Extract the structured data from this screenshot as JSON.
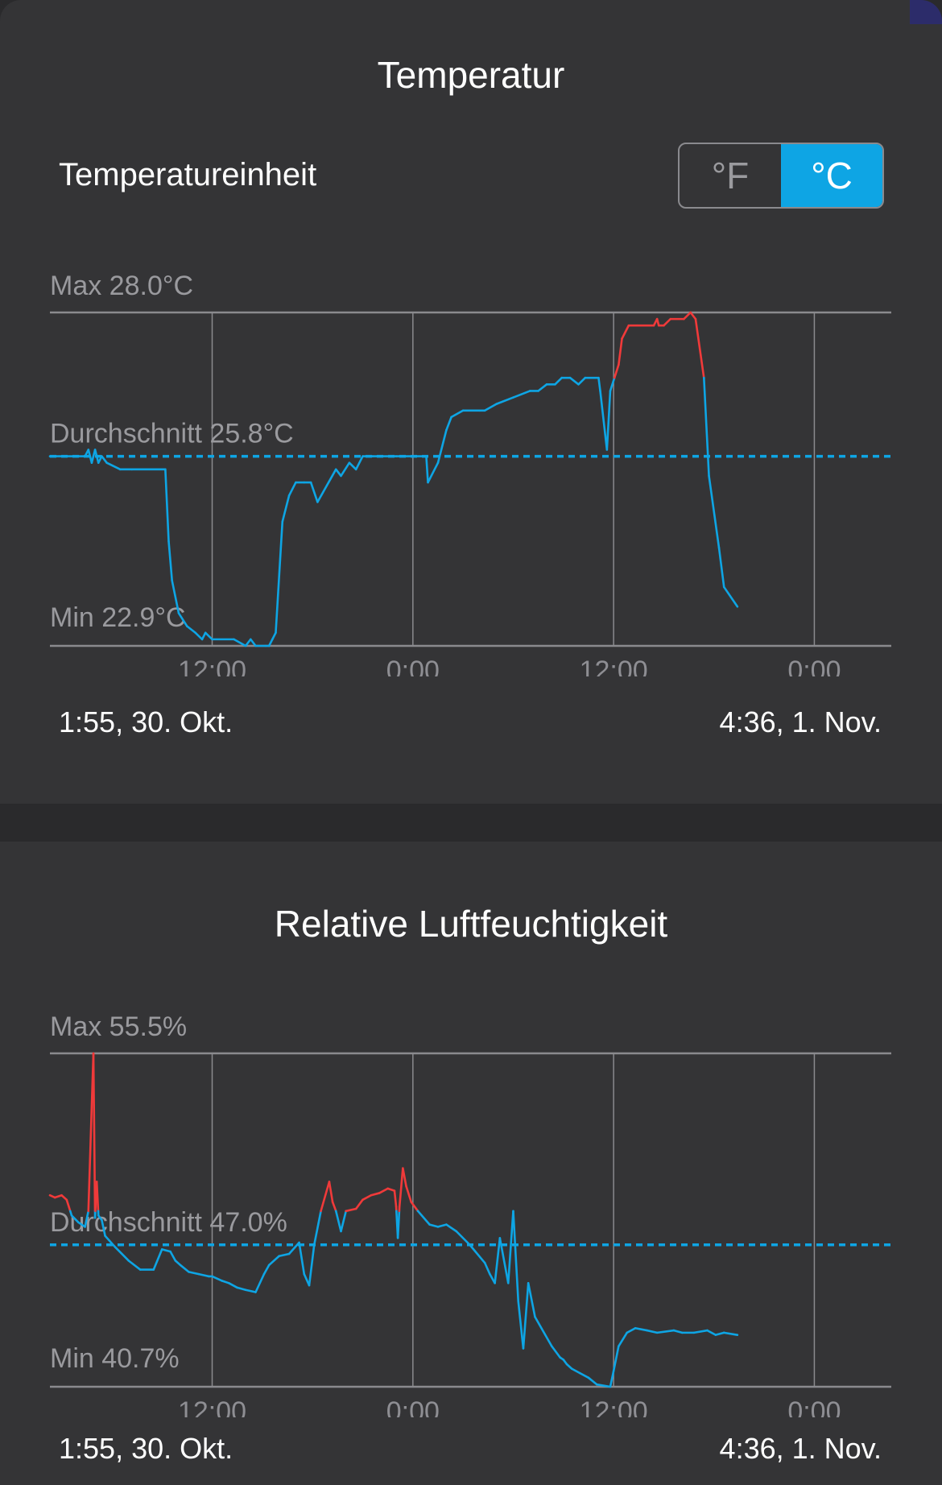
{
  "temperature": {
    "title": "Temperatur",
    "unit_label": "Temperatureinheit",
    "unit_options": [
      "°F",
      "°C"
    ],
    "selected_unit": "°C",
    "start_label": "1:55,  30. Okt.",
    "end_label": "4:36,  1. Nov."
  },
  "humidity": {
    "title": "Relative Luftfeuchtigkeit",
    "start_label": "1:55,  30. Okt.",
    "end_label": "4:36,  1. Nov."
  },
  "colors": {
    "normal": "#0ea5e4",
    "alert": "#f03a3a",
    "grid": "#8a8a8e",
    "avg": "#0ea5e4"
  },
  "chart_data": [
    {
      "type": "line",
      "title": "Temperatur",
      "unit": "°C",
      "x_ticks": [
        "12:00",
        "0:00",
        "12:00",
        "0:00"
      ],
      "x_tick_hours": [
        12,
        24,
        36,
        48
      ],
      "x_range_hours": [
        2.3,
        52.6
      ],
      "ylim": [
        22.9,
        28.0
      ],
      "max_label": "Max 28.0°C",
      "min_label": "Min 22.9°C",
      "avg_label": "Durchschnitt 25.8°C",
      "avg_value": 25.8,
      "threshold": 27.0,
      "series": [
        {
          "x": [
            2.3,
            4.4,
            4.6,
            4.8,
            5.0,
            5.2,
            5.4,
            5.7,
            6.5,
            7.2,
            9.2,
            9.4,
            9.6,
            10.0,
            10.5,
            11.0,
            11.4,
            11.6,
            12.0,
            13.3,
            14.0,
            14.3,
            14.6,
            15.2,
            15.4,
            15.6,
            15.8,
            16.2,
            16.6,
            17.0,
            17.5,
            17.9,
            18.3,
            19.4,
            19.7,
            20.2,
            20.6,
            21.0,
            21.6,
            23.0,
            24.8,
            24.9,
            25.5,
            26.0,
            26.3,
            27.0,
            28.0,
            28.3,
            29.0,
            30.0,
            31.0,
            31.5,
            32.0,
            32.5,
            32.9,
            33.4,
            33.9,
            34.3,
            35.1,
            35.2,
            35.6,
            35.8,
            36.3,
            36.5,
            36.9,
            37.4,
            38.4,
            38.6,
            38.7,
            38.8,
            39.0,
            39.4,
            40.2,
            40.6,
            40.9,
            41.4,
            41.7,
            42.3,
            42.6,
            43.4
          ],
          "y": [
            25.8,
            25.8,
            25.9,
            25.7,
            25.9,
            25.7,
            25.8,
            25.7,
            25.6,
            25.6,
            25.6,
            24.5,
            23.9,
            23.4,
            23.2,
            23.1,
            23.0,
            23.1,
            23.0,
            23.0,
            22.9,
            23.0,
            22.9,
            22.9,
            22.9,
            23.0,
            23.1,
            24.8,
            25.2,
            25.4,
            25.4,
            25.4,
            25.1,
            25.6,
            25.5,
            25.7,
            25.6,
            25.8,
            25.8,
            25.8,
            25.8,
            25.4,
            25.7,
            26.2,
            26.4,
            26.5,
            26.5,
            26.5,
            26.6,
            26.7,
            26.8,
            26.8,
            26.9,
            26.9,
            27.0,
            27.0,
            26.9,
            27.0,
            27.0,
            26.8,
            25.9,
            26.8,
            27.2,
            27.6,
            27.8,
            27.8,
            27.8,
            27.9,
            27.8,
            27.8,
            27.8,
            27.9,
            27.9,
            28.0,
            27.9,
            27.0,
            25.5,
            24.4,
            23.8,
            23.5
          ]
        }
      ]
    },
    {
      "type": "line",
      "title": "Relative Luftfeuchtigkeit",
      "unit": "%",
      "x_ticks": [
        "12:00",
        "0:00",
        "12:00",
        "0:00"
      ],
      "x_tick_hours": [
        12,
        24,
        36,
        48
      ],
      "x_range_hours": [
        2.3,
        52.6
      ],
      "ylim": [
        40.7,
        55.5
      ],
      "max_label": "Max 55.5%",
      "min_label": "Min 40.7%",
      "avg_label": "Durchschnitt 47.0%",
      "avg_value": 47.0,
      "threshold": 48.5,
      "series": [
        {
          "x": [
            2.3,
            2.6,
            3.0,
            3.3,
            3.6,
            4.0,
            4.4,
            4.6,
            4.9,
            5.0,
            5.1,
            5.2,
            5.4,
            5.6,
            6.2,
            7.0,
            7.7,
            8.5,
            9.0,
            9.5,
            9.8,
            10.1,
            10.6,
            11.2,
            11.8,
            12.0,
            12.6,
            13.0,
            13.5,
            14.0,
            14.6,
            15.1,
            15.4,
            16.0,
            16.6,
            17.2,
            17.5,
            17.8,
            18.1,
            18.5,
            19.0,
            19.2,
            19.4,
            19.7,
            20.0,
            20.6,
            21.0,
            21.5,
            22.0,
            22.5,
            22.9,
            23.0,
            23.1,
            23.2,
            23.4,
            23.6,
            23.9,
            24.3,
            25.0,
            25.5,
            26.0,
            26.6,
            27.4,
            28.3,
            28.6,
            28.9,
            29.2,
            29.7,
            30.0,
            30.3,
            30.6,
            30.9,
            31.3,
            32.3,
            32.8,
            33.0,
            33.2,
            33.5,
            34.0,
            34.5,
            35.0,
            35.8,
            36.0,
            36.3,
            36.8,
            37.3,
            38.0,
            38.6,
            39.6,
            40.1,
            40.8,
            41.6,
            42.1,
            42.6,
            43.4
          ],
          "y": [
            49.2,
            49.1,
            49.2,
            49.0,
            48.3,
            48.0,
            47.8,
            48.5,
            55.5,
            48.2,
            49.8,
            48.3,
            48.1,
            47.4,
            46.9,
            46.3,
            45.9,
            45.9,
            46.8,
            46.7,
            46.3,
            46.1,
            45.8,
            45.7,
            45.6,
            45.6,
            45.4,
            45.3,
            45.1,
            45.0,
            44.9,
            45.7,
            46.1,
            46.5,
            46.6,
            47.1,
            45.7,
            45.2,
            47.0,
            48.5,
            49.8,
            48.9,
            48.5,
            47.6,
            48.5,
            48.6,
            49.0,
            49.2,
            49.3,
            49.5,
            49.4,
            48.7,
            47.3,
            48.7,
            50.4,
            49.6,
            48.9,
            48.5,
            47.9,
            47.8,
            47.9,
            47.6,
            47.0,
            46.2,
            45.7,
            45.3,
            47.3,
            45.3,
            48.5,
            44.5,
            42.4,
            45.3,
            43.8,
            42.5,
            42.0,
            41.9,
            41.7,
            41.5,
            41.3,
            41.1,
            40.8,
            40.7,
            41.4,
            42.5,
            43.1,
            43.3,
            43.2,
            43.1,
            43.2,
            43.1,
            43.1,
            43.2,
            43.0,
            43.1,
            43.0
          ]
        }
      ]
    }
  ]
}
